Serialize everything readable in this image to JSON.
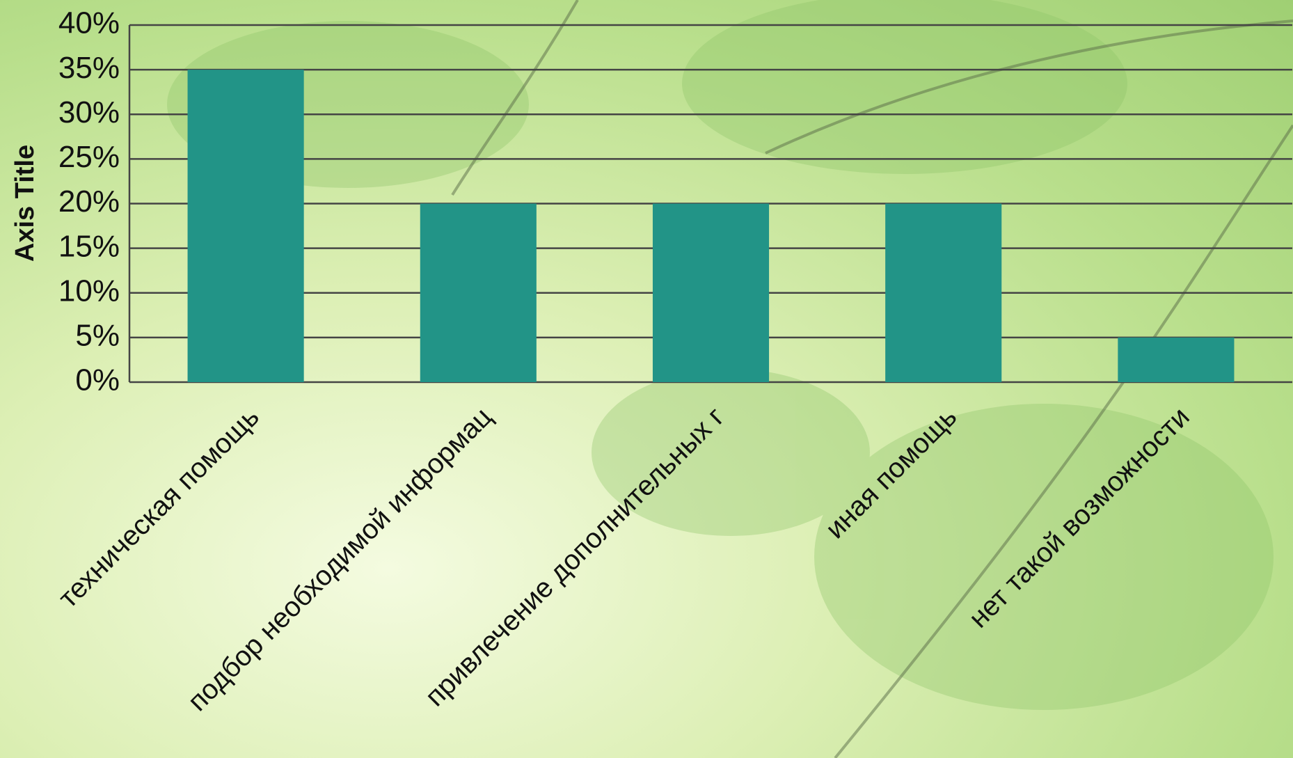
{
  "chart_data": {
    "type": "bar",
    "y_axis_title": "Axis Title",
    "categories": [
      "техническая помощь",
      "подбор необходимой информац",
      "привлечение дополнительных г",
      "иная помощь",
      "нет такой возможности"
    ],
    "values": [
      35,
      20,
      20,
      20,
      5
    ],
    "color": "#229487",
    "ylim": [
      0,
      40
    ],
    "yticks": [
      {
        "value": 0,
        "label": "0%"
      },
      {
        "value": 5,
        "label": "5%"
      },
      {
        "value": 10,
        "label": "10%"
      },
      {
        "value": 15,
        "label": "15%"
      },
      {
        "value": 20,
        "label": "20%"
      },
      {
        "value": 25,
        "label": "25%"
      },
      {
        "value": 30,
        "label": "30%"
      },
      {
        "value": 35,
        "label": "35%"
      },
      {
        "value": 40,
        "label": "40%"
      }
    ],
    "grid": true
  }
}
